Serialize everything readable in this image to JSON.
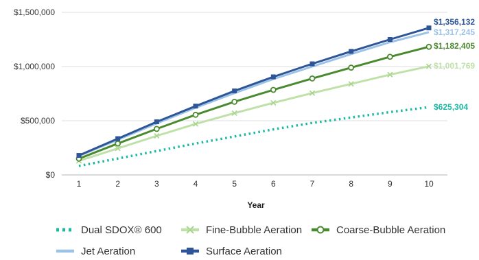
{
  "chart_data": {
    "type": "line",
    "x": [
      1,
      2,
      3,
      4,
      5,
      6,
      7,
      8,
      9,
      10
    ],
    "xlabel": "Year",
    "ylabel": "",
    "ylim": [
      0,
      1500000
    ],
    "xlim": [
      1,
      10
    ],
    "y_ticks": [
      "$0",
      "$500,000",
      "$1,000,000",
      "$1,500,000"
    ],
    "x_ticks": [
      "1",
      "2",
      "3",
      "4",
      "5",
      "6",
      "7",
      "8",
      "9",
      "10"
    ],
    "grid": "horizontal",
    "legend_position": "bottom",
    "series": [
      {
        "name": "Dual SDOX® 600",
        "color": "#1ab9a3",
        "style": "dotted",
        "marker": "none",
        "values": [
          83000,
          151000,
          220000,
          290000,
          355000,
          420000,
          480000,
          530000,
          580000,
          625304
        ],
        "end_label": "$625,304"
      },
      {
        "name": "Fine-Bubble Aeration",
        "color": "#bfe1a9",
        "style": "solid",
        "marker": "x",
        "values": [
          130000,
          245000,
          360000,
          470000,
          570000,
          665000,
          755000,
          840000,
          925000,
          1001769
        ],
        "end_label": "$1,001,769"
      },
      {
        "name": "Coarse-Bubble Aeration",
        "color": "#4a8a2f",
        "style": "solid",
        "marker": "circle",
        "values": [
          150000,
          290000,
          425000,
          555000,
          675000,
          785000,
          890000,
          990000,
          1090000,
          1182405
        ],
        "end_label": "$1,182,405"
      },
      {
        "name": "Jet Aeration",
        "color": "#9cc3e6",
        "style": "solid",
        "marker": "none",
        "values": [
          175000,
          325000,
          475000,
          620000,
          755000,
          885000,
          1000000,
          1115000,
          1225000,
          1317245
        ],
        "end_label": "$1,317,245"
      },
      {
        "name": "Surface Aeration",
        "color": "#2e5597",
        "style": "solid",
        "marker": "square",
        "values": [
          180000,
          335000,
          490000,
          635000,
          775000,
          905000,
          1025000,
          1140000,
          1250000,
          1356132
        ],
        "end_label": "$1,356,132"
      }
    ]
  }
}
